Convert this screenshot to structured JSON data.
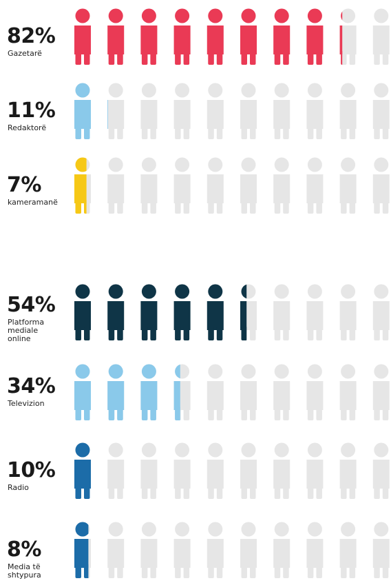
{
  "empty_color": "#e6e6e6",
  "chart_data": [
    {
      "type": "pictogram",
      "icons_per_row": 10,
      "rows": [
        {
          "value": 82,
          "value_label": "82%",
          "label": "Gazetarë",
          "color": "#ea3a55"
        },
        {
          "value": 11,
          "value_label": "11%",
          "label": "Redaktorë",
          "color": "#8ac9ea"
        },
        {
          "value": 7,
          "value_label": "7%",
          "label": "kameramanë",
          "color": "#f6c816"
        }
      ]
    },
    {
      "type": "pictogram",
      "icons_per_row": 10,
      "rows": [
        {
          "value": 54,
          "value_label": "54%",
          "label": "Platforma mediale online",
          "color": "#0f3547"
        },
        {
          "value": 34,
          "value_label": "34%",
          "label": "Televizion",
          "color": "#8ac9ea"
        },
        {
          "value": 10,
          "value_label": "10%",
          "label": "Radio",
          "color": "#1c6ca8"
        },
        {
          "value": 8,
          "value_label": "8%",
          "label": "Media të shtypura",
          "color": "#1c6ca8"
        }
      ]
    }
  ]
}
